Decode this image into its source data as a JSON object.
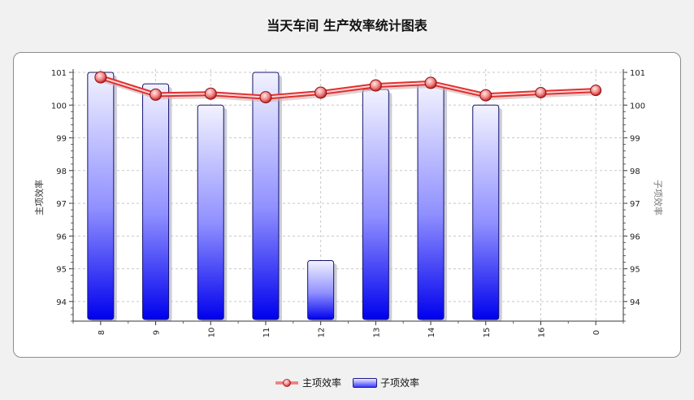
{
  "chart_data": {
    "type": "bar",
    "title": "当天车间  生产效率统计图表",
    "ylabel_left": "主项效率",
    "ylabel_right": "子项效率",
    "categories": [
      "8",
      "9",
      "10",
      "11",
      "12",
      "13",
      "14",
      "15",
      "16",
      "0"
    ],
    "ylim": [
      93.4,
      101.1
    ],
    "yticks": [
      94,
      95,
      96,
      97,
      98,
      99,
      100,
      101
    ],
    "grid": true,
    "legend_position": "bottom",
    "series": [
      {
        "name": "主项效率",
        "type": "line",
        "color": "#e03030",
        "values": [
          100.85,
          100.32,
          100.35,
          100.24,
          100.38,
          100.6,
          100.68,
          100.3,
          100.38,
          100.45
        ]
      },
      {
        "name": "子项效率",
        "type": "bar",
        "color": "#2020ff",
        "values": [
          101.0,
          100.65,
          100.0,
          101.0,
          95.25,
          100.48,
          100.65,
          100.0,
          null,
          null
        ]
      }
    ]
  }
}
